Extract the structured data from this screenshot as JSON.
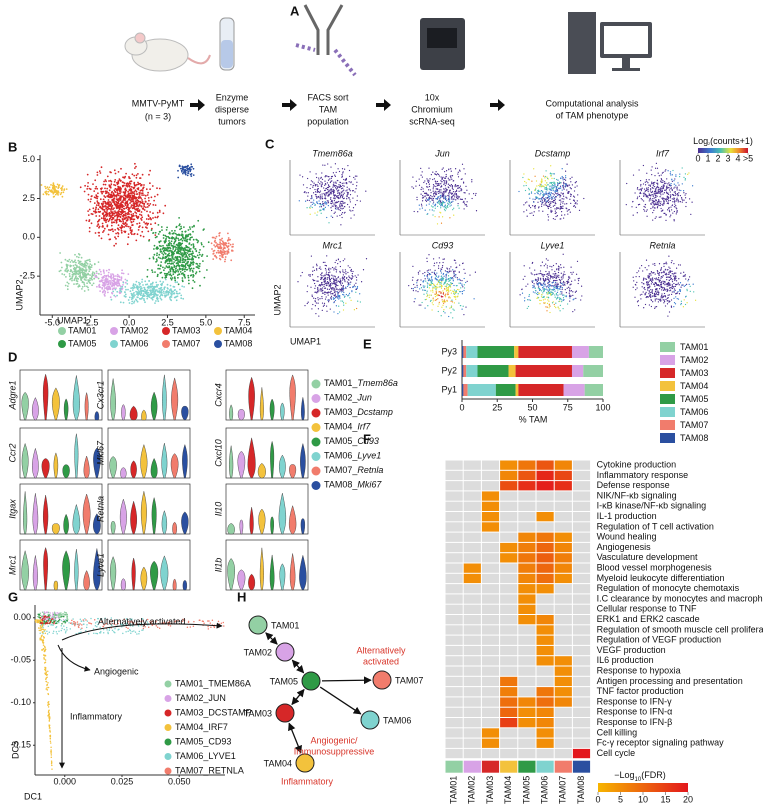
{
  "workflow": {
    "letter": "A",
    "steps": [
      [
        "MMTV-PyMT",
        "(n = 3)"
      ],
      [
        "Enzyme",
        "disperse",
        "tumors"
      ],
      [
        "FACS sort",
        "TAM",
        "population"
      ],
      [
        "10x",
        "Chromium",
        "scRNA-seq"
      ],
      [
        "Computational analysis",
        "of TAM phenotype"
      ]
    ]
  },
  "clusters": [
    {
      "name": "TAM01",
      "color": "#93d0a4"
    },
    {
      "name": "TAM02",
      "color": "#d8a3e6"
    },
    {
      "name": "TAM03",
      "color": "#d62728"
    },
    {
      "name": "TAM04",
      "color": "#f3c23c"
    },
    {
      "name": "TAM05",
      "color": "#2f9a46"
    },
    {
      "name": "TAM06",
      "color": "#7fd3cf"
    },
    {
      "name": "TAM07",
      "color": "#f17c6c"
    },
    {
      "name": "TAM08",
      "color": "#2a4fa0"
    }
  ],
  "umap": {
    "letter": "B",
    "xlabel": "UMAP1",
    "ylabel": "UMAP2",
    "xlim": [
      -5.8,
      8.2
    ],
    "ylim": [
      -5,
      5.3
    ],
    "xticks": [
      {
        "value": -5,
        "label": "-5.0"
      },
      {
        "value": -2.5,
        "label": "-2.5"
      },
      {
        "value": 0,
        "label": "0.0"
      },
      {
        "value": 2.5,
        "label": "2.5"
      },
      {
        "value": 5,
        "label": "5.0"
      },
      {
        "value": 7.5,
        "label": "7.5"
      }
    ],
    "yticks": [
      {
        "value": 5,
        "label": "5.0"
      },
      {
        "value": 2.5,
        "label": "2.5"
      },
      {
        "value": 0,
        "label": "0.0"
      },
      {
        "value": -2.5,
        "label": "-2.5"
      }
    ]
  },
  "feature": {
    "letter": "C",
    "genes": [
      "Tmem86a",
      "Jun",
      "Dcstamp",
      "Irf7",
      "Mrc1",
      "Cd93",
      "Lyve1",
      "Retnla"
    ],
    "xlabel": "UMAP1",
    "ylabel": "UMAP2",
    "scale_title": [
      "Log",
      "2",
      "(counts+1)"
    ],
    "scale_lim": [
      0,
      5
    ],
    "scale_ticks": [
      0,
      1,
      2,
      3,
      4,
      {
        "value": 5,
        "label": ">5"
      }
    ]
  },
  "violin": {
    "letter": "D",
    "genes": [
      [
        "Adgre1",
        "Cx3cr1",
        "Cxcr4"
      ],
      [
        "Ccr2",
        "Mki67",
        "Cxcl10"
      ],
      [
        "Itgax",
        "Retnla",
        "Il10"
      ],
      [
        "Mrc1",
        "Lyve1",
        "Il1b"
      ]
    ],
    "legend": [
      [
        "TAM01_",
        "Tmem86a"
      ],
      [
        "TAM02_",
        "Jun"
      ],
      [
        "TAM03_",
        "Dcstamp"
      ],
      [
        "TAM04_",
        "Irf7"
      ],
      [
        "TAM05_",
        "Cd93"
      ],
      [
        "TAM06_",
        "Lyve1"
      ],
      [
        "TAM07_",
        "Retnla"
      ],
      [
        "TAM08_",
        "Mki67"
      ]
    ]
  },
  "chart_data": {
    "type": "bar",
    "letter": "E",
    "categories": [
      "Py3",
      "Py2",
      "Py1"
    ],
    "series": [
      {
        "name": "TAM01",
        "color": "#93d0a4",
        "values": [
          10,
          14,
          13
        ]
      },
      {
        "name": "TAM02",
        "color": "#d8a3e6",
        "values": [
          12,
          8,
          15
        ]
      },
      {
        "name": "TAM03",
        "color": "#d62728",
        "values": [
          38,
          40,
          32
        ]
      },
      {
        "name": "TAM04",
        "color": "#f3c23c",
        "values": [
          3,
          5,
          2
        ]
      },
      {
        "name": "TAM05",
        "color": "#2f9a46",
        "values": [
          26,
          22,
          14
        ]
      },
      {
        "name": "TAM06",
        "color": "#7fd3cf",
        "values": [
          8,
          8,
          20
        ]
      },
      {
        "name": "TAM07",
        "color": "#f17c6c",
        "values": [
          2,
          2,
          3
        ]
      },
      {
        "name": "TAM08",
        "color": "#2a4fa0",
        "values": [
          1,
          1,
          1
        ]
      }
    ],
    "xlim": [
      0,
      100
    ],
    "xticks": [
      0,
      25,
      50,
      75,
      100
    ],
    "xlabel": "% TAM"
  },
  "heatmap": {
    "letter": "F",
    "terms": [
      "Cytokine production",
      "Inflammatory response",
      "Defense response",
      "NIK/NF-κb signaling",
      "I-κB kinase/NF-κb signaling",
      "IL-1 production",
      "Regulation of T cell activation",
      "Wound healing",
      "Angiogenesis",
      "Vasculature development",
      "Blood vessel morphogenesis",
      "Myeloid leukocyte differentiation",
      "Regulation of monocyte chemotaxis",
      "I.C clearance by monocytes and macrophages",
      "Cellular response to TNF",
      "ERK1 and ERK2 cascade",
      "Regulation of smooth muscle cell proliferation",
      "Regulation of VEGF production",
      "VEGF production",
      "IL6 production",
      "Response to hypoxia",
      "Antigen processing and presentation",
      "TNF factor production",
      "Response to IFN-γ",
      "Response to IFN-α",
      "Response to IFN-β",
      "Cell killing",
      "Fc-γ receptor signaling pathway",
      "Cell cycle"
    ],
    "values": [
      [
        null,
        null,
        null,
        5,
        8,
        12,
        6,
        null
      ],
      [
        null,
        null,
        null,
        6,
        12,
        18,
        14,
        null
      ],
      [
        null,
        null,
        null,
        13,
        17,
        19,
        17,
        null
      ],
      [
        null,
        null,
        5,
        null,
        null,
        null,
        null,
        null
      ],
      [
        null,
        null,
        5,
        null,
        null,
        null,
        null,
        null
      ],
      [
        null,
        null,
        5,
        null,
        null,
        5,
        null,
        null
      ],
      [
        null,
        null,
        5,
        null,
        null,
        null,
        null,
        null
      ],
      [
        null,
        null,
        null,
        null,
        6,
        8,
        5,
        null
      ],
      [
        null,
        null,
        null,
        5,
        7,
        10,
        6,
        null
      ],
      [
        null,
        null,
        null,
        5,
        8,
        11,
        7,
        null
      ],
      [
        null,
        5,
        null,
        null,
        7,
        10,
        6,
        null
      ],
      [
        null,
        5,
        null,
        null,
        6,
        9,
        5,
        null
      ],
      [
        null,
        null,
        null,
        null,
        5,
        5,
        null,
        null
      ],
      [
        null,
        null,
        null,
        null,
        5,
        null,
        null,
        null
      ],
      [
        null,
        null,
        null,
        null,
        5,
        null,
        null,
        null
      ],
      [
        null,
        null,
        null,
        null,
        5,
        6,
        null,
        null
      ],
      [
        null,
        null,
        null,
        null,
        null,
        5,
        null,
        null
      ],
      [
        null,
        null,
        null,
        null,
        null,
        5,
        null,
        null
      ],
      [
        null,
        null,
        null,
        null,
        null,
        5,
        null,
        null
      ],
      [
        null,
        null,
        null,
        null,
        null,
        5,
        5,
        null
      ],
      [
        null,
        null,
        null,
        null,
        null,
        null,
        5,
        null
      ],
      [
        null,
        null,
        null,
        8,
        null,
        null,
        5,
        null
      ],
      [
        null,
        null,
        null,
        7,
        null,
        8,
        5,
        null
      ],
      [
        null,
        null,
        null,
        9,
        6,
        9,
        6,
        null
      ],
      [
        null,
        null,
        null,
        10,
        5,
        6,
        null,
        null
      ],
      [
        null,
        null,
        null,
        15,
        5,
        6,
        null,
        null
      ],
      [
        null,
        null,
        5,
        null,
        null,
        5,
        null,
        null
      ],
      [
        null,
        null,
        5,
        null,
        null,
        5,
        null,
        null
      ],
      [
        null,
        null,
        null,
        null,
        null,
        null,
        null,
        20
      ]
    ],
    "scale_title": [
      "−Log",
      "10",
      "(FDR)"
    ],
    "scale_lim": [
      0,
      20
    ],
    "scale_ticks": [
      0,
      5,
      10,
      15,
      20
    ]
  },
  "diffusion": {
    "letter": "G",
    "xlabel": "DC1",
    "ylabel": "DC3",
    "annotations": [
      "Alternatively activated",
      "Angiogenic",
      "Inflammatory"
    ],
    "legend": [
      "TAM01_TMEM86A",
      "TAM02_JUN",
      "TAM03_DCSTAMP",
      "TAM04_IRF7",
      "TAM05_CD93",
      "TAM06_LYVE1",
      "TAM07_RETNLA"
    ],
    "xlim": [
      -0.013,
      0.07
    ],
    "ylim": [
      -0.185,
      0.015
    ],
    "xticks": [
      {
        "value": 0,
        "label": "0.000"
      },
      {
        "value": 0.025,
        "label": "0.025"
      },
      {
        "value": 0.05,
        "label": "0.050"
      }
    ],
    "yticks": [
      {
        "value": 0,
        "label": "0.00"
      },
      {
        "value": -0.05,
        "label": "-0.05"
      },
      {
        "value": -0.1,
        "label": "-0.10"
      },
      {
        "value": -0.15,
        "label": "-0.15"
      }
    ]
  },
  "trajectory": {
    "letter": "H",
    "nodes": [
      "TAM01",
      "TAM02",
      "TAM05",
      "TAM07",
      "TAM03",
      "TAM06",
      "TAM04"
    ],
    "annotations": [
      [
        "Alternatively",
        "activated"
      ],
      [
        "Angiogenic/",
        "Immunosuppressive"
      ],
      [
        "Inflammatory"
      ]
    ]
  }
}
